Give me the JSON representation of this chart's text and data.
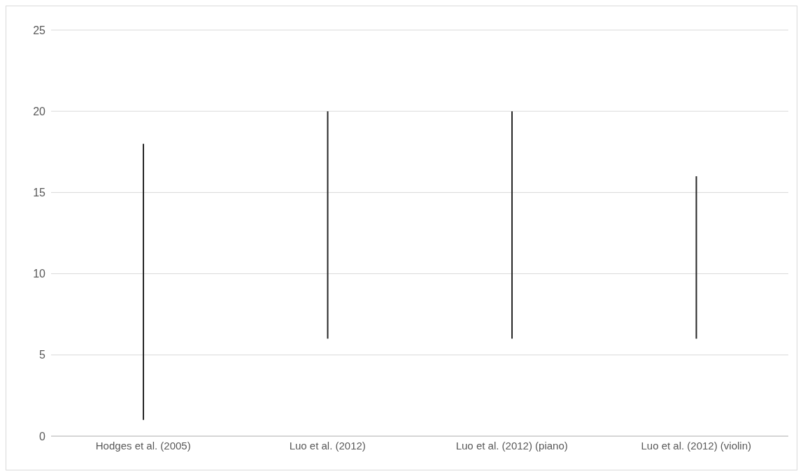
{
  "chart_data": {
    "type": "bar",
    "categories": [
      "Hodges et al. (2005)",
      "Luo et al. (2012)",
      "Luo et al. (2012) (piano)",
      "Luo et al. (2012) (violin)"
    ],
    "base": [
      1,
      6,
      6,
      6
    ],
    "values": [
      17,
      14,
      14,
      10
    ],
    "color": "#262626",
    "ylim": [
      0,
      25
    ],
    "yticks": [
      0,
      5,
      10,
      15,
      20,
      25
    ],
    "grid": "y"
  }
}
